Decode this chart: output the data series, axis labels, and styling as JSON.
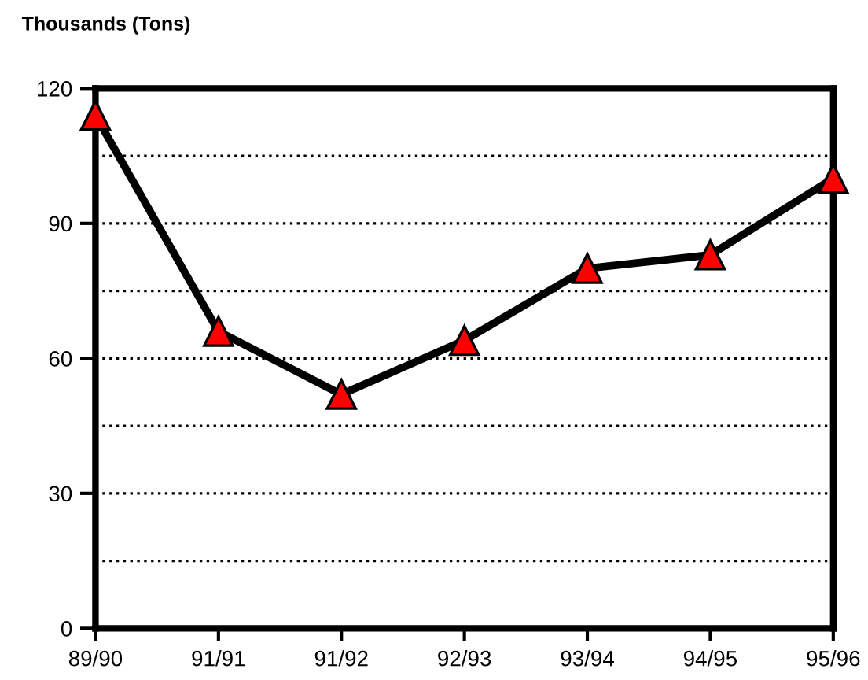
{
  "chart_data": {
    "type": "line",
    "ylabel": "Thousands (Tons)",
    "categories": [
      "89/90",
      "91/91",
      "91/92",
      "92/93",
      "93/94",
      "94/95",
      "95/96"
    ],
    "series": [
      {
        "color": "#ff0000",
        "values": [
          114,
          66,
          52,
          64,
          80,
          83,
          100
        ]
      }
    ],
    "ylim": [
      0,
      120
    ],
    "yticks": [
      0,
      {
        "value": 15,
        "label": null
      },
      30,
      {
        "value": 45,
        "label": null
      },
      60,
      {
        "value": 75,
        "label": null
      },
      90,
      {
        "value": 105,
        "label": null
      },
      120
    ],
    "grid": "y",
    "marker": "triangle",
    "line_style": "solid",
    "legend": false
  }
}
